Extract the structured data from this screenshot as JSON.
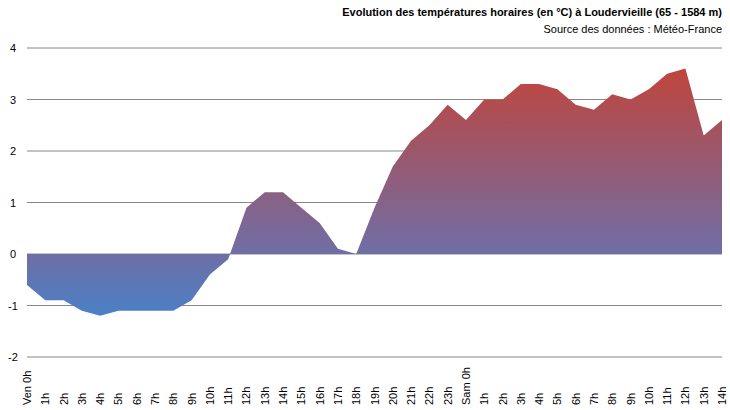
{
  "chart_data": {
    "type": "area",
    "title": "Evolution des températures horaires (en °C) à Loudervieille (65 - 1584 m)",
    "subtitle": "Source des données : Météo-France",
    "categories": [
      "Ven 0h",
      "1h",
      "2h",
      "3h",
      "4h",
      "5h",
      "6h",
      "7h",
      "8h",
      "9h",
      "10h",
      "11h",
      "12h",
      "13h",
      "14h",
      "15h",
      "16h",
      "17h",
      "18h",
      "19h",
      "20h",
      "21h",
      "22h",
      "23h",
      "Sam 0h",
      "1h",
      "2h",
      "3h",
      "4h",
      "5h",
      "6h",
      "7h",
      "8h",
      "9h",
      "10h",
      "11h",
      "12h",
      "13h",
      "14h"
    ],
    "values": [
      -0.6,
      -0.9,
      -0.9,
      -1.1,
      -1.2,
      -1.1,
      -1.1,
      -1.1,
      -1.1,
      -0.9,
      -0.4,
      -0.1,
      0.9,
      1.2,
      1.2,
      0.9,
      0.6,
      0.1,
      0.0,
      0.9,
      1.7,
      2.2,
      2.5,
      2.9,
      2.6,
      3.0,
      3.0,
      3.3,
      3.3,
      3.2,
      2.9,
      2.8,
      3.1,
      3.0,
      3.2,
      3.5,
      3.6,
      2.3,
      2.6
    ],
    "color": "#c0453c",
    "ylim": [
      -2,
      4
    ],
    "yticks": [
      -2,
      -1,
      0,
      1,
      2,
      3,
      4
    ],
    "grid": true
  }
}
